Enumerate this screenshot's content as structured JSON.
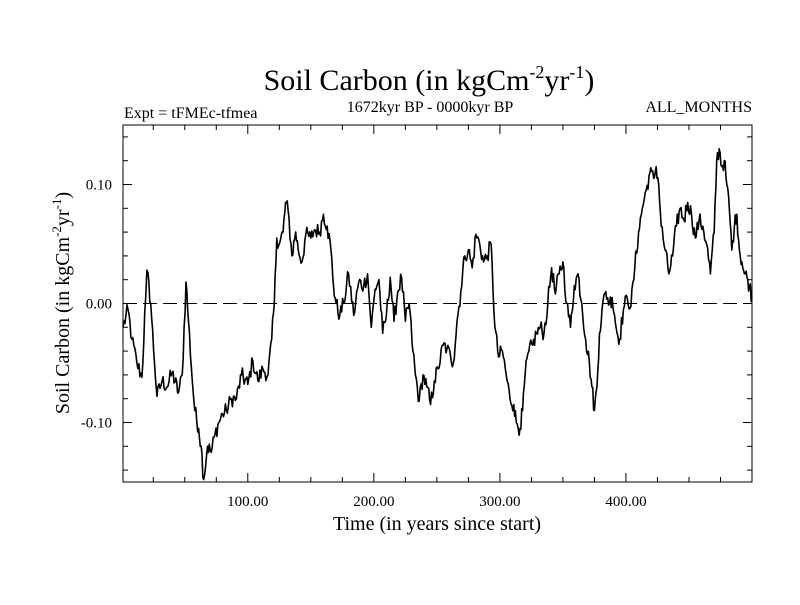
{
  "chart_data": {
    "type": "line",
    "title": {
      "base": "Soil Carbon (in kgCm",
      "exp1": "-2",
      "mid": "yr",
      "exp2": "-1",
      "end": ")"
    },
    "subtitle_left": "Expt = tFMEc-tfmea",
    "subtitle_center": "1672kyr BP - 0000kyr BP",
    "subtitle_right": "ALL_MONTHS",
    "xlabel": "Time (in years since start)",
    "ylabel": {
      "base": "Soil Carbon (in kgCm",
      "exp1": "-2",
      "mid": "yr",
      "exp2": "-1",
      "end": ")"
    },
    "xlim": [
      1,
      500
    ],
    "ylim": [
      -0.15,
      0.15
    ],
    "xticks": [
      100,
      200,
      300,
      400
    ],
    "xtick_labels": [
      "100.00",
      "200.00",
      "300.00",
      "400.00"
    ],
    "yticks": [
      0.1,
      0.0,
      -0.1
    ],
    "ytick_labels": [
      "0.10",
      "0.00",
      "-0.10"
    ],
    "reference_line": 0.0,
    "series": [
      {
        "name": "Soil Carbon",
        "keypoints": [
          [
            1,
            -0.02
          ],
          [
            5,
            -0.005
          ],
          [
            8,
            -0.03
          ],
          [
            12,
            -0.05
          ],
          [
            16,
            -0.062
          ],
          [
            19,
            0.005
          ],
          [
            20,
            0.028
          ],
          [
            23,
            0.0
          ],
          [
            26,
            -0.05
          ],
          [
            28,
            -0.078
          ],
          [
            32,
            -0.065
          ],
          [
            36,
            -0.07
          ],
          [
            40,
            -0.058
          ],
          [
            45,
            -0.075
          ],
          [
            48,
            -0.06
          ],
          [
            51,
            0.018
          ],
          [
            53,
            -0.015
          ],
          [
            56,
            -0.065
          ],
          [
            58,
            -0.09
          ],
          [
            61,
            -0.105
          ],
          [
            63,
            -0.12
          ],
          [
            65,
            -0.148
          ],
          [
            68,
            -0.12
          ],
          [
            71,
            -0.125
          ],
          [
            74,
            -0.11
          ],
          [
            77,
            -0.1
          ],
          [
            80,
            -0.093
          ],
          [
            83,
            -0.09
          ],
          [
            87,
            -0.08
          ],
          [
            91,
            -0.08
          ],
          [
            95,
            -0.06
          ],
          [
            100,
            -0.068
          ],
          [
            104,
            -0.048
          ],
          [
            108,
            -0.065
          ],
          [
            112,
            -0.055
          ],
          [
            116,
            -0.06
          ],
          [
            119,
            -0.03
          ],
          [
            121,
            0.0
          ],
          [
            123,
            0.055
          ],
          [
            125,
            0.05
          ],
          [
            128,
            0.06
          ],
          [
            130,
            0.085
          ],
          [
            132,
            0.078
          ],
          [
            135,
            0.04
          ],
          [
            138,
            0.06
          ],
          [
            140,
            0.045
          ],
          [
            143,
            0.035
          ],
          [
            146,
            0.058
          ],
          [
            150,
            0.055
          ],
          [
            153,
            0.062
          ],
          [
            157,
            0.06
          ],
          [
            160,
            0.075
          ],
          [
            163,
            0.065
          ],
          [
            166,
            0.045
          ],
          [
            168,
            0.015
          ],
          [
            170,
            0.0
          ],
          [
            173,
            -0.01
          ],
          [
            176,
            0.0
          ],
          [
            180,
            0.025
          ],
          [
            184,
            -0.01
          ],
          [
            188,
            0.018
          ],
          [
            192,
            0.015
          ],
          [
            195,
            0.025
          ],
          [
            198,
            -0.02
          ],
          [
            201,
            0.012
          ],
          [
            204,
            0.02
          ],
          [
            207,
            -0.025
          ],
          [
            210,
            -0.01
          ],
          [
            213,
            0.022
          ],
          [
            216,
            -0.015
          ],
          [
            219,
            0.01
          ],
          [
            222,
            0.022
          ],
          [
            225,
            -0.015
          ],
          [
            228,
            0.0
          ],
          [
            231,
            -0.04
          ],
          [
            233,
            -0.06
          ],
          [
            236,
            -0.082
          ],
          [
            239,
            -0.06
          ],
          [
            242,
            -0.07
          ],
          [
            245,
            -0.085
          ],
          [
            248,
            -0.065
          ],
          [
            251,
            -0.055
          ],
          [
            255,
            -0.035
          ],
          [
            258,
            -0.038
          ],
          [
            261,
            -0.045
          ],
          [
            263,
            -0.05
          ],
          [
            266,
            -0.015
          ],
          [
            269,
            0.01
          ],
          [
            272,
            0.04
          ],
          [
            275,
            0.045
          ],
          [
            278,
            0.03
          ],
          [
            281,
            0.058
          ],
          [
            284,
            0.05
          ],
          [
            287,
            0.035
          ],
          [
            290,
            0.04
          ],
          [
            293,
            0.05
          ],
          [
            296,
            -0.02
          ],
          [
            299,
            -0.045
          ],
          [
            302,
            -0.04
          ],
          [
            305,
            -0.06
          ],
          [
            308,
            -0.08
          ],
          [
            311,
            -0.085
          ],
          [
            313,
            -0.1
          ],
          [
            316,
            -0.105
          ],
          [
            318,
            -0.09
          ],
          [
            320,
            -0.06
          ],
          [
            323,
            -0.04
          ],
          [
            326,
            -0.035
          ],
          [
            329,
            -0.025
          ],
          [
            332,
            -0.02
          ],
          [
            335,
            -0.025
          ],
          [
            338,
            0.0
          ],
          [
            341,
            0.03
          ],
          [
            344,
            0.008
          ],
          [
            347,
            0.025
          ],
          [
            350,
            0.035
          ],
          [
            353,
            0.0
          ],
          [
            356,
            -0.02
          ],
          [
            359,
            0.015
          ],
          [
            362,
            0.025
          ],
          [
            365,
            0.0
          ],
          [
            368,
            -0.03
          ],
          [
            371,
            -0.05
          ],
          [
            373,
            -0.07
          ],
          [
            375,
            -0.09
          ],
          [
            377,
            -0.07
          ],
          [
            379,
            -0.025
          ],
          [
            381,
            -0.005
          ],
          [
            384,
            0.01
          ],
          [
            387,
            0.0
          ],
          [
            389,
            0.005
          ],
          [
            391,
            -0.01
          ],
          [
            393,
            -0.025
          ],
          [
            395,
            -0.03
          ],
          [
            398,
            -0.005
          ],
          [
            401,
            0.005
          ],
          [
            404,
            -0.002
          ],
          [
            407,
            0.03
          ],
          [
            410,
            0.06
          ],
          [
            413,
            0.08
          ],
          [
            416,
            0.095
          ],
          [
            419,
            0.11
          ],
          [
            422,
            0.105
          ],
          [
            424,
            0.115
          ],
          [
            426,
            0.1
          ],
          [
            428,
            0.065
          ],
          [
            431,
            0.045
          ],
          [
            434,
            0.025
          ],
          [
            437,
            0.04
          ],
          [
            440,
            0.065
          ],
          [
            443,
            0.08
          ],
          [
            446,
            0.07
          ],
          [
            449,
            0.085
          ],
          [
            452,
            0.075
          ],
          [
            455,
            0.055
          ],
          [
            458,
            0.07
          ],
          [
            461,
            0.065
          ],
          [
            464,
            0.05
          ],
          [
            467,
            0.025
          ],
          [
            470,
            0.06
          ],
          [
            472,
            0.12
          ],
          [
            474,
            0.13
          ],
          [
            476,
            0.115
          ],
          [
            478,
            0.12
          ],
          [
            480,
            0.1
          ],
          [
            482,
            0.08
          ],
          [
            484,
            0.045
          ],
          [
            486,
            0.065
          ],
          [
            488,
            0.075
          ],
          [
            490,
            0.045
          ],
          [
            492,
            0.035
          ],
          [
            494,
            0.025
          ],
          [
            496,
            0.022
          ],
          [
            498,
            0.015
          ],
          [
            500,
            0.005
          ]
        ],
        "color": "#000000"
      }
    ]
  }
}
